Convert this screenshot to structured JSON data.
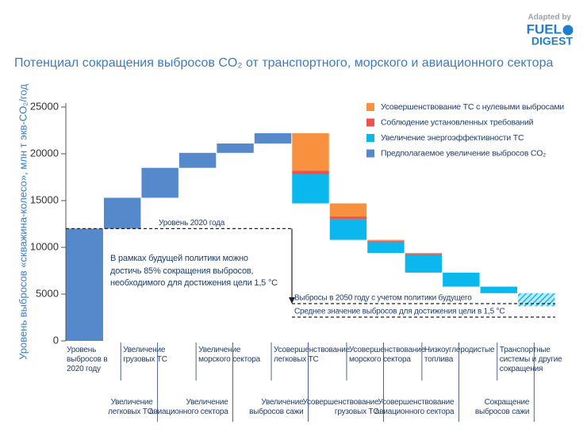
{
  "logo": {
    "adapted": "Adapted by",
    "brand": "FUEL",
    "brand2": "DIGEST"
  },
  "chart_data": {
    "type": "waterfall",
    "title": "Потенциал сокращения выбросов CO₂ от транспортного, морского и авиационного сектора",
    "y_label": "Уровень выбросов «скважина-колесо», млн т экв-CO₂/год",
    "ylim": [
      0,
      25000
    ],
    "yticks": [
      0,
      5000,
      10000,
      15000,
      20000,
      25000
    ],
    "categories": [
      "Уровень\nвыбросов в\n2020 году",
      "Увеличение\nлегковых ТС",
      "Увеличение\nгрузовых ТС",
      "Увеличение\nавиационного сектора",
      "Увеличение\nморского сектора",
      "Увеличение\nвыбросов сажи",
      "Усовершенствование\nлегковых ТС",
      "Усовершенствование\nгрузовых ТС",
      "Усовершенствование\nморского сектора",
      "Усовершенствование\nавиационного сектора",
      "Низкоуглеродистые\nтоплива",
      "Сокращение\nвыбросов сажи",
      "Транспортные\nсистемы и другие\nсокращения"
    ],
    "hatched": [
      false,
      false,
      false,
      false,
      false,
      false,
      false,
      false,
      false,
      false,
      false,
      false,
      true
    ],
    "series": [
      {
        "name": "Усовершенствование ТС с нулевыми выбросами",
        "color": "#f7903f",
        "values": [
          null,
          null,
          null,
          null,
          null,
          null,
          -4000,
          -1400,
          -100,
          -100,
          null,
          null,
          null
        ]
      },
      {
        "name": "Соблюдение установленных требований",
        "color": "#ec5250",
        "values": [
          null,
          null,
          null,
          null,
          null,
          null,
          -400,
          -300,
          -100,
          -150,
          null,
          null,
          null
        ]
      },
      {
        "name": "Увеличение энергоэффективности ТС",
        "color": "#0bb8ee",
        "values": [
          null,
          null,
          null,
          null,
          null,
          null,
          -3100,
          -2200,
          -1200,
          -1850,
          -1500,
          -700,
          -1400
        ]
      },
      {
        "name": "Предполагаемое увеличение выбросов CO₂",
        "color": "#5689cc",
        "values": [
          12000,
          3300,
          3200,
          1600,
          1000,
          1100,
          null,
          null,
          null,
          null,
          null,
          null,
          null
        ]
      }
    ],
    "reference_lines": [
      {
        "label": "Уровень 2020 года",
        "value": 12000
      },
      {
        "label": "Выбросы в 2050 году с учетом политики будущего",
        "value": 3980
      },
      {
        "label": "Среднее значение выбросов для достижения цели в 1,5 °C",
        "value": 2540
      }
    ],
    "annotation": "В рамках будущей политики можно\nдостичь 85% сокращения выбросов,\nнеобходимого для достижения цели 1,5 °C"
  }
}
